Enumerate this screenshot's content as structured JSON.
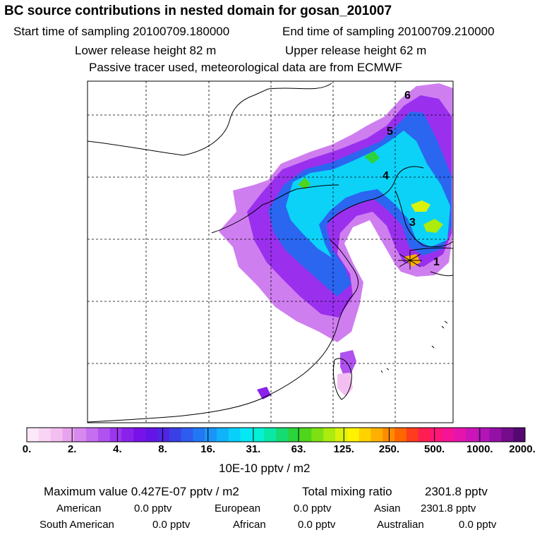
{
  "header": {
    "title": "BC  source contributions in nested domain for gosan_201007",
    "start_time": "Start time of sampling 20100709.180000",
    "end_time": "End time of sampling 20100709.210000",
    "lower_release": "Lower release height   82 m",
    "upper_release": "Upper release height   62 m",
    "tracer_note": "Passive tracer used, meteorological data are from ECMWF"
  },
  "map": {
    "trajectory_labels": [
      "1",
      "3",
      "4",
      "5",
      "6"
    ]
  },
  "colorbar": {
    "tick_labels": [
      "0.",
      "2.",
      "4.",
      "8.",
      "16.",
      "31.",
      "63.",
      "125.",
      "250.",
      "500.",
      "1000.",
      "2000."
    ],
    "units": "10E-10 pptv / m2",
    "colors": [
      "#fde8f8",
      "#f9d4f4",
      "#f3bff1",
      "#e9a3ee",
      "#d789f0",
      "#c56ff0",
      "#b052ef",
      "#9b35ee",
      "#8a22ec",
      "#7713ea",
      "#6414e6",
      "#5025e3",
      "#3a40e6",
      "#2d5cee",
      "#2277f4",
      "#1a94f8",
      "#10b2fa",
      "#08d0fb",
      "#04e8f4",
      "#05f0d4",
      "#0ae8a6",
      "#15dc72",
      "#2bd43c",
      "#4ed51c",
      "#7ee012",
      "#aceb0e",
      "#d9f20b",
      "#fff200",
      "#ffd200",
      "#ffb000",
      "#ff8c00",
      "#ff6600",
      "#ff3c1e",
      "#ff1e50",
      "#ff1478",
      "#f51496",
      "#e414ad",
      "#cd14b8",
      "#b314b7",
      "#9410a6",
      "#740c8c",
      "#560871"
    ]
  },
  "stats": {
    "max_label": "Maximum value  0.427E-07 pptv / m2",
    "total_label": "Total mixing ratio",
    "total_value": "2301.8 pptv",
    "regions": [
      {
        "name": "American",
        "value": "0.0 pptv"
      },
      {
        "name": "European",
        "value": "0.0 pptv"
      },
      {
        "name": "Asian",
        "value": "2301.8 pptv"
      },
      {
        "name": "South American",
        "value": "0.0 pptv"
      },
      {
        "name": "African",
        "value": "0.0 pptv"
      },
      {
        "name": "Australian",
        "value": "0.0 pptv"
      }
    ]
  }
}
